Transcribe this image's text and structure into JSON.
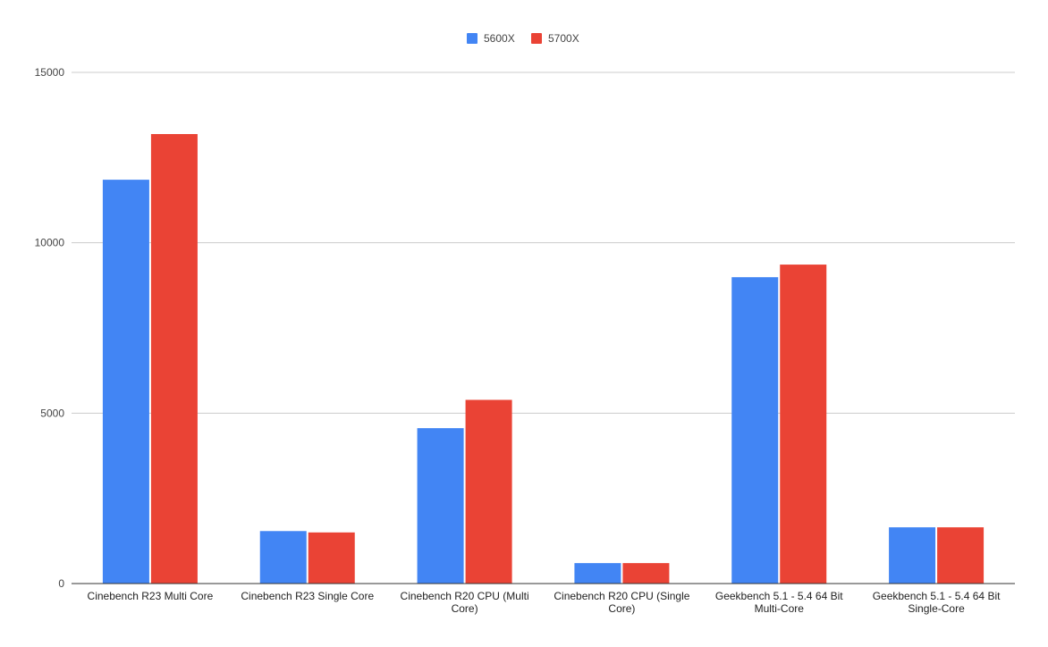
{
  "chart_data": {
    "type": "bar",
    "title": "",
    "xlabel": "",
    "ylabel": "",
    "categories": [
      [
        "Cinebench R23 Multi Core"
      ],
      [
        "Cinebench R23 Single Core"
      ],
      [
        "Cinebench R20 CPU (Multi",
        "Core)"
      ],
      [
        "Cinebench R20 CPU (Single",
        "Core)"
      ],
      [
        "Geekbench 5.1 - 5.4 64 Bit",
        "Multi-Core"
      ],
      [
        "Geekbench 5.1 - 5.4 64 Bit",
        "Single-Core"
      ]
    ],
    "series": [
      {
        "name": "5600X",
        "color": "#4285f4",
        "values": [
          11850,
          1540,
          4560,
          600,
          8990,
          1650
        ]
      },
      {
        "name": "5700X",
        "color": "#ea4335",
        "values": [
          13190,
          1500,
          5390,
          600,
          9360,
          1650
        ]
      }
    ],
    "ylim": [
      0,
      15000
    ],
    "yticks": [
      0,
      5000,
      10000,
      15000
    ],
    "grid": true,
    "legend": "top-center"
  }
}
